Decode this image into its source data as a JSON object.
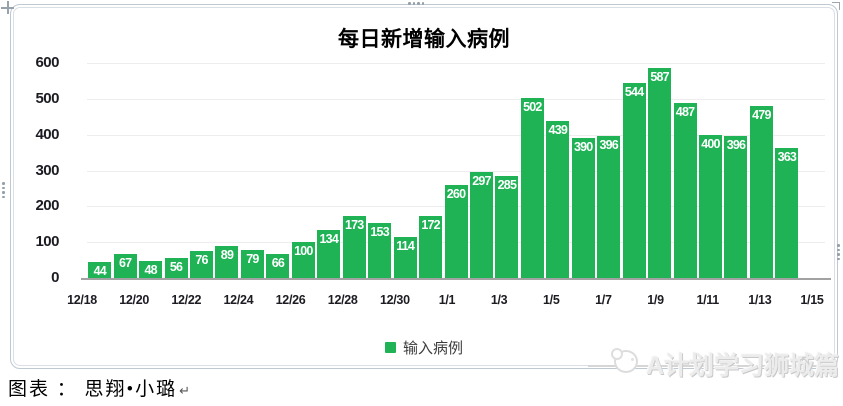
{
  "chart_data": {
    "type": "bar",
    "title": "每日新增输入病例",
    "categories": [
      "12/18",
      "12/19",
      "12/20",
      "12/21",
      "12/22",
      "12/23",
      "12/24",
      "12/25",
      "12/26",
      "12/27",
      "12/28",
      "12/29",
      "12/30",
      "12/31",
      "1/1",
      "1/2",
      "1/3",
      "1/4",
      "1/5",
      "1/6",
      "1/7",
      "1/8",
      "1/9",
      "1/10",
      "1/11",
      "1/12",
      "1/13",
      "1/14",
      "1/15"
    ],
    "values": [
      44,
      67,
      48,
      56,
      76,
      89,
      79,
      66,
      100,
      134,
      173,
      153,
      114,
      172,
      260,
      297,
      285,
      502,
      439,
      390,
      396,
      544,
      587,
      487,
      400,
      396,
      479,
      363,
      null
    ],
    "xtick_labels": [
      "12/18",
      "12/20",
      "12/22",
      "12/24",
      "12/26",
      "12/28",
      "12/30",
      "1/1",
      "1/3",
      "1/5",
      "1/7",
      "1/9",
      "1/11",
      "1/13",
      "1/15"
    ],
    "xlabel": "",
    "ylabel": "",
    "ylim": [
      0,
      600
    ],
    "yticks": [
      0,
      100,
      200,
      300,
      400,
      500,
      600
    ],
    "grid": "horizontal",
    "legend_position": "bottom",
    "legend": [
      {
        "label": "输入病例",
        "color": "#1fb356"
      }
    ],
    "bar_color": "#1fb356",
    "bar_label_color": "#ffffff"
  },
  "caption": {
    "text": "图表 ： 思翔•小璐",
    "return_mark": "↵"
  },
  "watermark": {
    "text": "A计划学习狮城篇",
    "arrow_glyph": "↖"
  },
  "colors": {
    "bar_green": "#1fb356",
    "grid_line": "#ededed",
    "axis_line": "#a2a2a2",
    "panel_border": "#bfc9d2",
    "handle_dot": "#94a0a9",
    "watermark_gray": "#ececec"
  }
}
